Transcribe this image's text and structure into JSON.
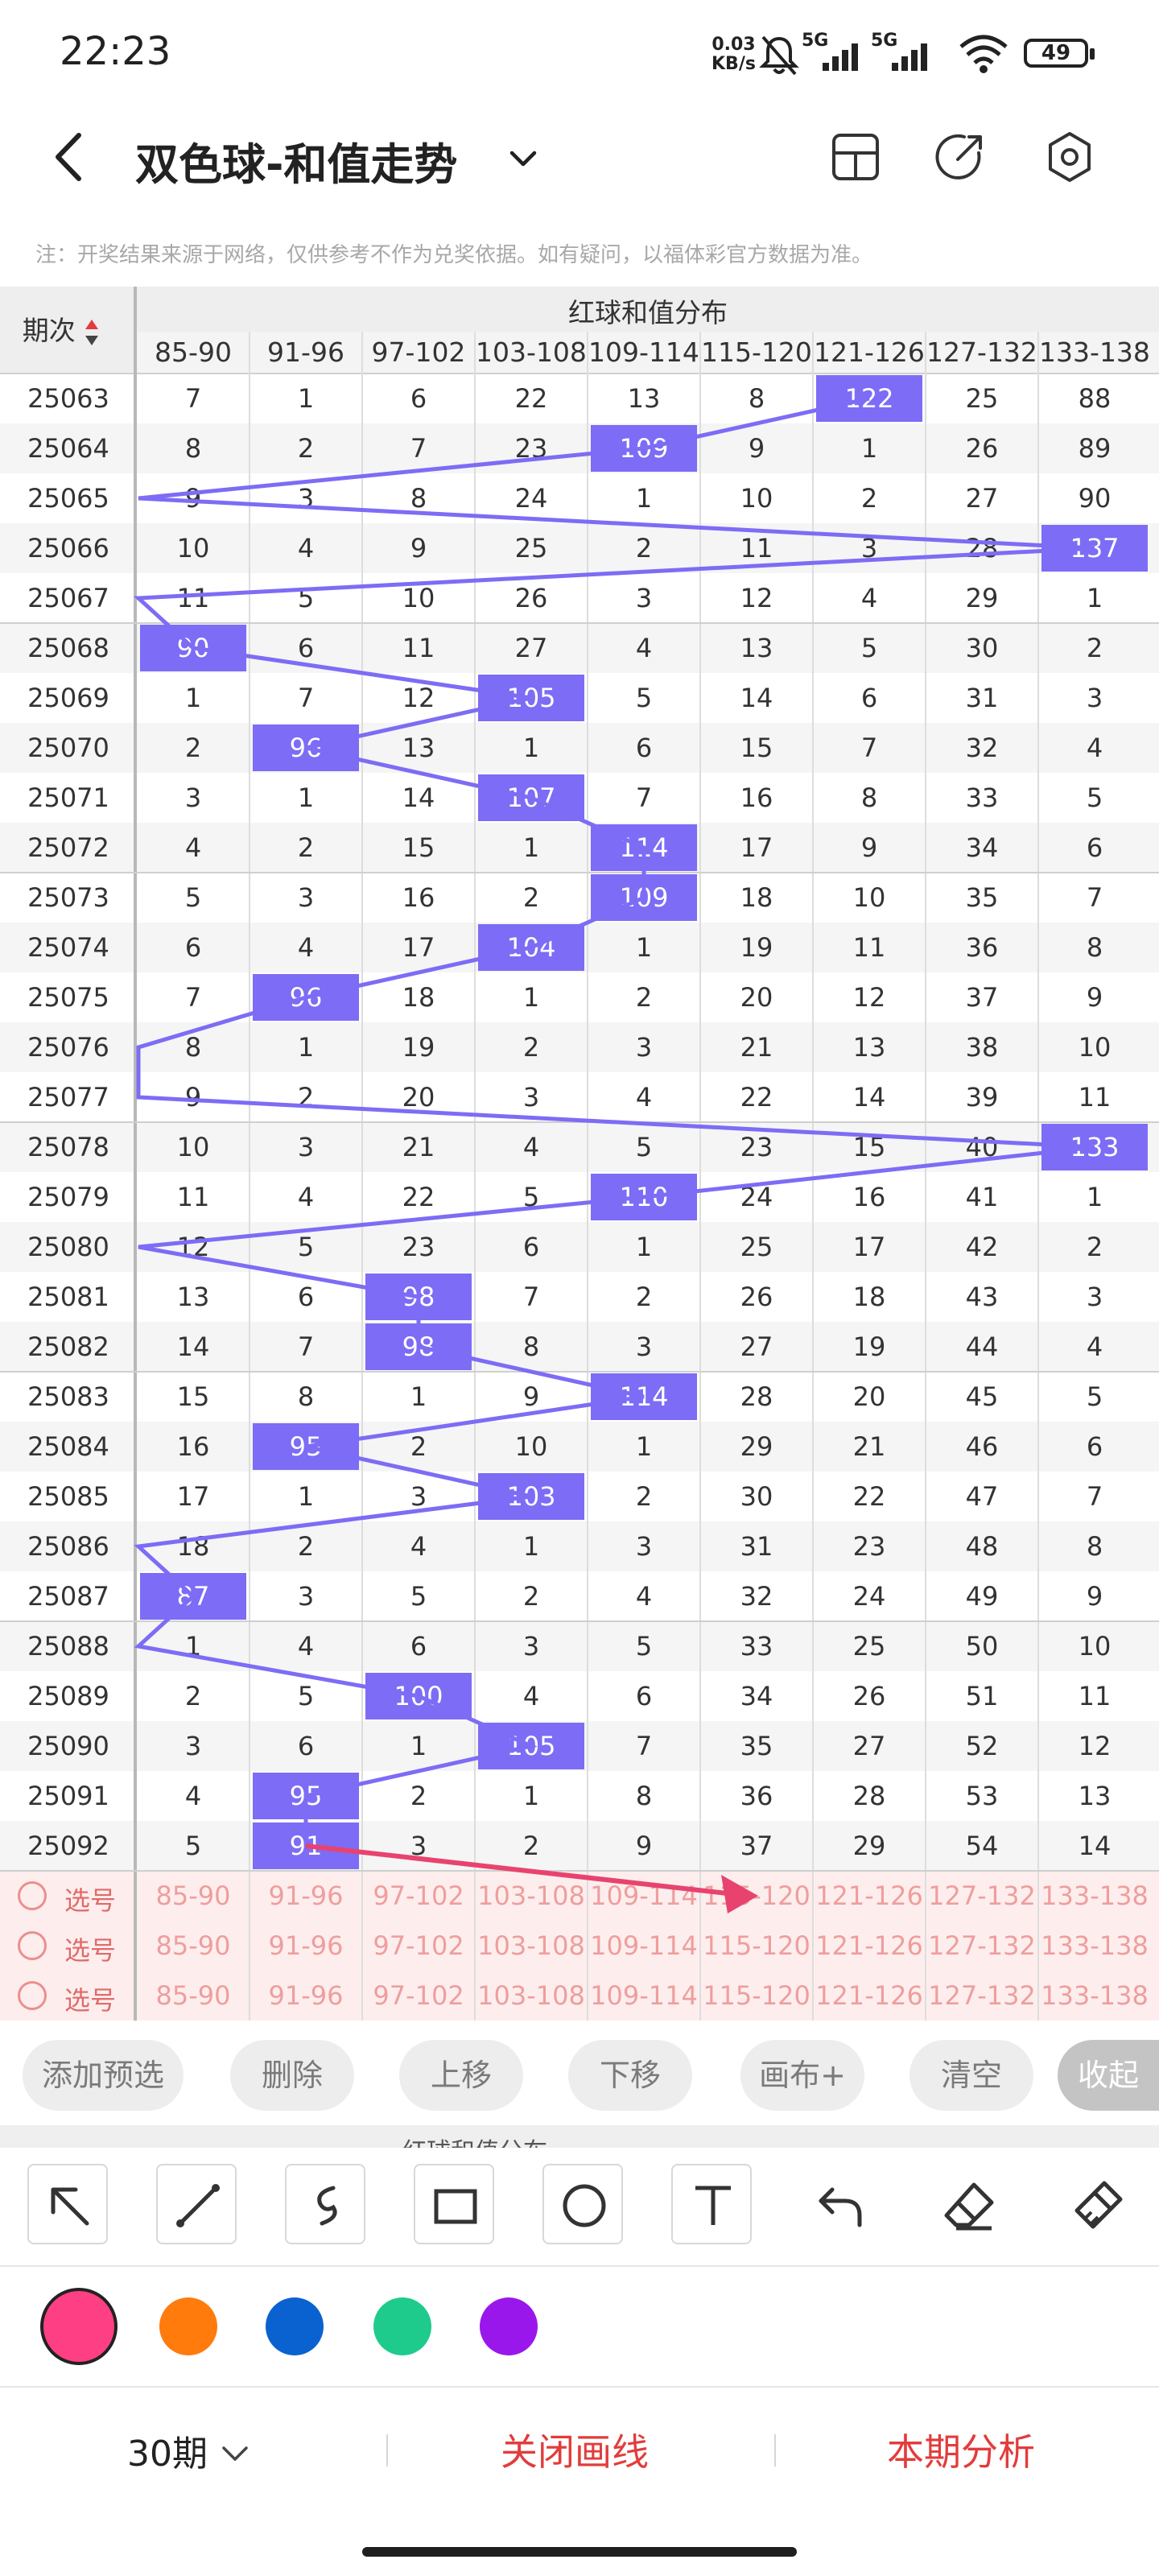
{
  "status": {
    "time": "22:23",
    "speed_value": "0.03",
    "speed_unit": "KB/s",
    "network1": "5G",
    "network2": "5G",
    "battery": "49"
  },
  "nav": {
    "title": "双色球-和值走势"
  },
  "notice": "注：开奖结果来源于网络，仅供参考不作为兑奖依据。如有疑问，以福体彩官方数据为准。",
  "table": {
    "period_header": "期次",
    "group_header": "红球和值分布",
    "columns": [
      "85-90",
      "91-96",
      "97-102",
      "103-108",
      "109-114",
      "115-120",
      "121-126",
      "127-132",
      "133-138"
    ],
    "rows": [
      {
        "period": "25063",
        "cells": [
          "7",
          "1",
          "6",
          "22",
          "13",
          "8",
          "122",
          "25",
          "88"
        ],
        "hit": 6
      },
      {
        "period": "25064",
        "cells": [
          "8",
          "2",
          "7",
          "23",
          "109",
          "9",
          "1",
          "26",
          "89"
        ],
        "hit": 4
      },
      {
        "period": "25065",
        "cells": [
          "9",
          "3",
          "8",
          "24",
          "1",
          "10",
          "2",
          "27",
          "90"
        ],
        "hit": -1
      },
      {
        "period": "25066",
        "cells": [
          "10",
          "4",
          "9",
          "25",
          "2",
          "11",
          "3",
          "28",
          "137"
        ],
        "hit": 8
      },
      {
        "period": "25067",
        "cells": [
          "11",
          "5",
          "10",
          "26",
          "3",
          "12",
          "4",
          "29",
          "1"
        ],
        "hit": -1
      },
      {
        "period": "25068",
        "cells": [
          "90",
          "6",
          "11",
          "27",
          "4",
          "13",
          "5",
          "30",
          "2"
        ],
        "hit": 0
      },
      {
        "period": "25069",
        "cells": [
          "1",
          "7",
          "12",
          "105",
          "5",
          "14",
          "6",
          "31",
          "3"
        ],
        "hit": 3
      },
      {
        "period": "25070",
        "cells": [
          "2",
          "96",
          "13",
          "1",
          "6",
          "15",
          "7",
          "32",
          "4"
        ],
        "hit": 1
      },
      {
        "period": "25071",
        "cells": [
          "3",
          "1",
          "14",
          "107",
          "7",
          "16",
          "8",
          "33",
          "5"
        ],
        "hit": 3
      },
      {
        "period": "25072",
        "cells": [
          "4",
          "2",
          "15",
          "1",
          "114",
          "17",
          "9",
          "34",
          "6"
        ],
        "hit": 4
      },
      {
        "period": "25073",
        "cells": [
          "5",
          "3",
          "16",
          "2",
          "109",
          "18",
          "10",
          "35",
          "7"
        ],
        "hit": 4
      },
      {
        "period": "25074",
        "cells": [
          "6",
          "4",
          "17",
          "104",
          "1",
          "19",
          "11",
          "36",
          "8"
        ],
        "hit": 3
      },
      {
        "period": "25075",
        "cells": [
          "7",
          "96",
          "18",
          "1",
          "2",
          "20",
          "12",
          "37",
          "9"
        ],
        "hit": 1
      },
      {
        "period": "25076",
        "cells": [
          "8",
          "1",
          "19",
          "2",
          "3",
          "21",
          "13",
          "38",
          "10"
        ],
        "hit": -1
      },
      {
        "period": "25077",
        "cells": [
          "9",
          "2",
          "20",
          "3",
          "4",
          "22",
          "14",
          "39",
          "11"
        ],
        "hit": -1
      },
      {
        "period": "25078",
        "cells": [
          "10",
          "3",
          "21",
          "4",
          "5",
          "23",
          "15",
          "40",
          "133"
        ],
        "hit": 8
      },
      {
        "period": "25079",
        "cells": [
          "11",
          "4",
          "22",
          "5",
          "110",
          "24",
          "16",
          "41",
          "1"
        ],
        "hit": 4
      },
      {
        "period": "25080",
        "cells": [
          "12",
          "5",
          "23",
          "6",
          "1",
          "25",
          "17",
          "42",
          "2"
        ],
        "hit": -1
      },
      {
        "period": "25081",
        "cells": [
          "13",
          "6",
          "98",
          "7",
          "2",
          "26",
          "18",
          "43",
          "3"
        ],
        "hit": 2
      },
      {
        "period": "25082",
        "cells": [
          "14",
          "7",
          "98",
          "8",
          "3",
          "27",
          "19",
          "44",
          "4"
        ],
        "hit": 2
      },
      {
        "period": "25083",
        "cells": [
          "15",
          "8",
          "1",
          "9",
          "114",
          "28",
          "20",
          "45",
          "5"
        ],
        "hit": 4
      },
      {
        "period": "25084",
        "cells": [
          "16",
          "95",
          "2",
          "10",
          "1",
          "29",
          "21",
          "46",
          "6"
        ],
        "hit": 1
      },
      {
        "period": "25085",
        "cells": [
          "17",
          "1",
          "3",
          "103",
          "2",
          "30",
          "22",
          "47",
          "7"
        ],
        "hit": 3
      },
      {
        "period": "25086",
        "cells": [
          "18",
          "2",
          "4",
          "1",
          "3",
          "31",
          "23",
          "48",
          "8"
        ],
        "hit": -1
      },
      {
        "period": "25087",
        "cells": [
          "87",
          "3",
          "5",
          "2",
          "4",
          "32",
          "24",
          "49",
          "9"
        ],
        "hit": 0
      },
      {
        "period": "25088",
        "cells": [
          "1",
          "4",
          "6",
          "3",
          "5",
          "33",
          "25",
          "50",
          "10"
        ],
        "hit": -1
      },
      {
        "period": "25089",
        "cells": [
          "2",
          "5",
          "100",
          "4",
          "6",
          "34",
          "26",
          "51",
          "11"
        ],
        "hit": 2
      },
      {
        "period": "25090",
        "cells": [
          "3",
          "6",
          "1",
          "105",
          "7",
          "35",
          "27",
          "52",
          "12"
        ],
        "hit": 3
      },
      {
        "period": "25091",
        "cells": [
          "4",
          "95",
          "2",
          "1",
          "8",
          "36",
          "28",
          "53",
          "13"
        ],
        "hit": 1
      },
      {
        "period": "25092",
        "cells": [
          "5",
          "91",
          "3",
          "2",
          "9",
          "37",
          "29",
          "54",
          "14"
        ],
        "hit": 1
      }
    ],
    "select_label": "选号",
    "select_rows": 3
  },
  "actions": {
    "add": "添加预选",
    "delete": "删除",
    "move_up": "上移",
    "move_down": "下移",
    "canvas": "画布+",
    "clear": "清空",
    "collapse": "收起"
  },
  "peek_header": "红球和值分布",
  "tools": [
    "arrow-tool-icon",
    "line-tool-icon",
    "freehand-tool-icon",
    "rectangle-tool-icon",
    "circle-tool-icon",
    "text-tool-icon",
    "undo-icon",
    "eraser-icon",
    "clear-drawing-icon"
  ],
  "palette": {
    "selected": "#ff3f84",
    "colors": [
      "#ff3f84",
      "#ff7b0c",
      "#0a62d0",
      "#1ecb8c",
      "#9a17eb"
    ]
  },
  "bottom": {
    "period": "30期",
    "close_line": "关闭画线",
    "analysis": "本期分析"
  },
  "colors": {
    "highlight": "#7d6cf5",
    "accent_red": "#e23c3c",
    "annotation_arrow": "#e8436f"
  }
}
